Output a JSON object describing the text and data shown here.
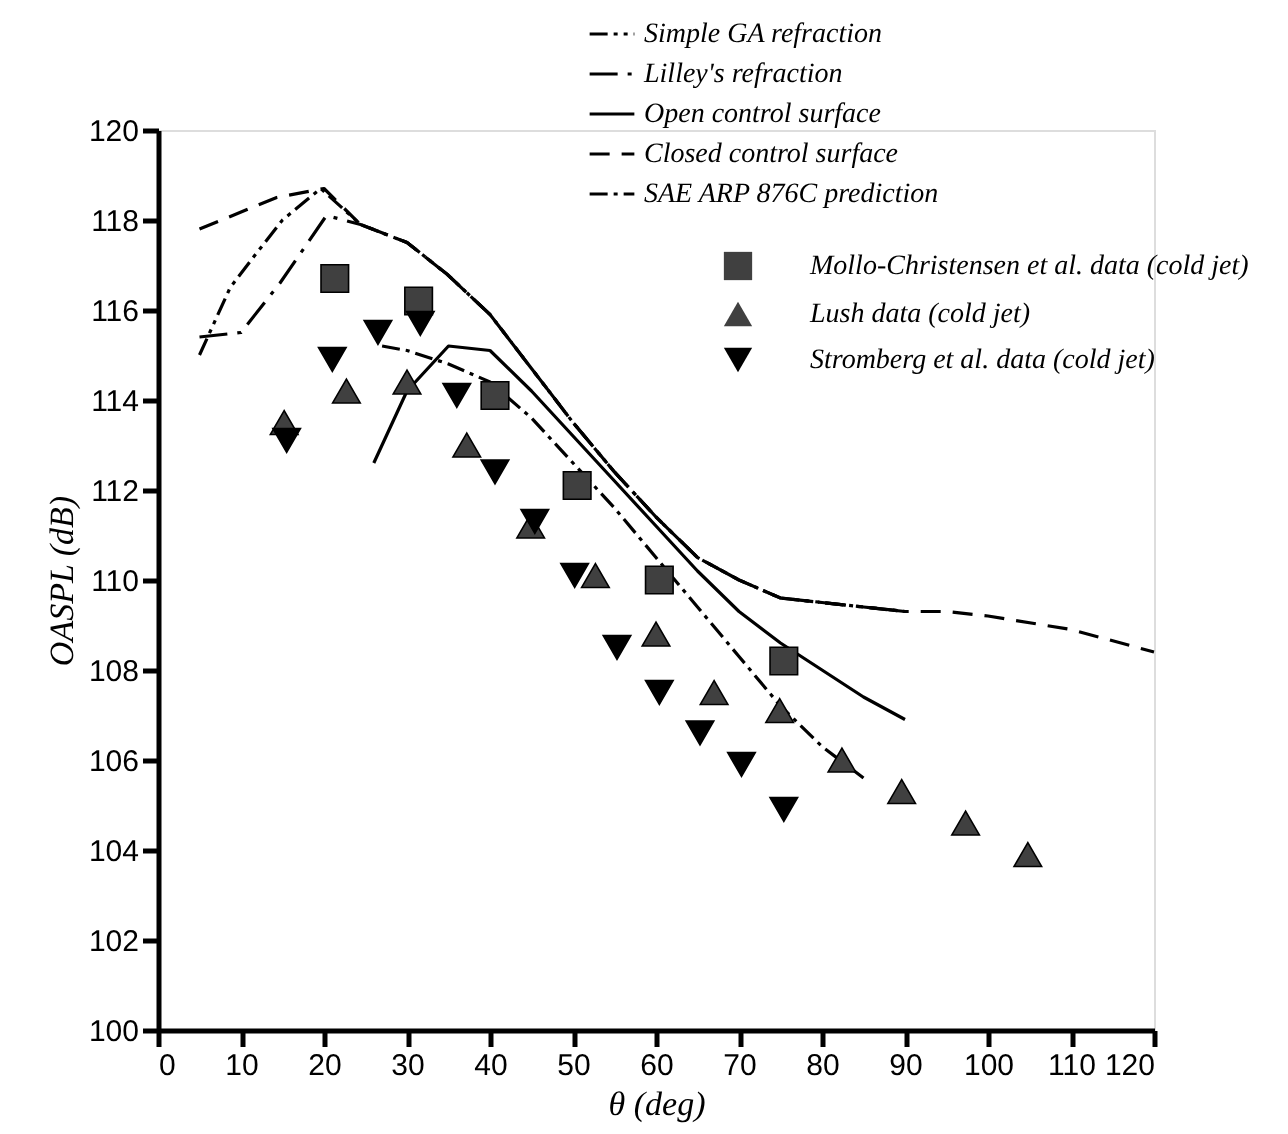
{
  "chart_data": {
    "type": "line",
    "xlabel": "θ  (deg)",
    "ylabel": "OASPL (dB)",
    "xlim": [
      0,
      120
    ],
    "xticks": [
      0,
      10,
      20,
      30,
      40,
      50,
      60,
      70,
      80,
      90,
      100,
      110,
      120
    ],
    "ylim": [
      100,
      120
    ],
    "yticks": [
      100,
      102,
      104,
      106,
      108,
      110,
      112,
      114,
      116,
      118,
      120
    ],
    "grid": false,
    "legend": "top right",
    "series": [
      {
        "name": "Simple GA refraction",
        "line_style": "dashdotdot",
        "color": "#000000",
        "x": [
          5,
          8.7,
          11.6,
          15,
          19.6,
          24.4,
          30,
          34.8,
          40,
          45,
          50,
          55,
          60,
          65,
          70,
          75,
          80,
          85,
          90
        ],
        "values": [
          115,
          116.5,
          117.2,
          118,
          118.7,
          117.9,
          117.5,
          116.8,
          115.9,
          114.7,
          113.5,
          112.4,
          111.4,
          110.5,
          110,
          109.6,
          109.5,
          109.4,
          109.3
        ]
      },
      {
        "name": "Lilley's refraction",
        "line_style": "longdashdot",
        "color": "#000000",
        "x": [
          5,
          10,
          14.7,
          20.3,
          24.4,
          30,
          34.8,
          40,
          45,
          50,
          55,
          60,
          65,
          70,
          75,
          80,
          85,
          90
        ],
        "values": [
          115.4,
          115.5,
          116.6,
          118.1,
          117.9,
          117.5,
          116.8,
          115.9,
          114.7,
          113.5,
          112.4,
          111.4,
          110.5,
          110,
          109.6,
          109.5,
          109.4,
          109.3
        ]
      },
      {
        "name": "Open control surface",
        "line_style": "solid",
        "color": "#000000",
        "x": [
          26,
          30,
          35,
          40,
          45,
          50,
          55,
          60,
          65,
          70,
          75,
          80,
          85,
          90
        ],
        "values": [
          112.6,
          114.2,
          115.2,
          115.1,
          114.2,
          113.2,
          112.2,
          111.2,
          110.2,
          109.3,
          108.6,
          108,
          107.4,
          106.9
        ]
      },
      {
        "name": "Closed control surface",
        "line_style": "dashed",
        "color": "#000000",
        "x": [
          5,
          14.3,
          20,
          24.4,
          30,
          34.8,
          40,
          45,
          50,
          55,
          60,
          65,
          70,
          75,
          80,
          85,
          90,
          95,
          100,
          110,
          120
        ],
        "values": [
          117.8,
          118.5,
          118.7,
          117.9,
          117.5,
          116.8,
          115.9,
          114.7,
          113.5,
          112.4,
          111.4,
          110.5,
          110,
          109.6,
          109.5,
          109.4,
          109.3,
          109.3,
          109.2,
          108.9,
          108.4
        ]
      },
      {
        "name": "SAE ARP 876C prediction",
        "line_style": "dashdot",
        "color": "#000000",
        "x": [
          27,
          30,
          35,
          40,
          45,
          50,
          55,
          60,
          65,
          70,
          75,
          80,
          85
        ],
        "values": [
          115.2,
          115.1,
          114.8,
          114.4,
          113.6,
          112.6,
          111.6,
          110.5,
          109.4,
          108.3,
          107.2,
          106.3,
          105.6
        ]
      },
      {
        "name": "Mollo-Christensen et al. data (cold jet)",
        "type": "scatter",
        "marker": "square",
        "color": "#404040",
        "x": [
          21.3,
          31.4,
          40.6,
          50.5,
          60.4,
          75.4
        ],
        "values": [
          116.7,
          116.2,
          114.1,
          112.1,
          110.0,
          108.2
        ]
      },
      {
        "name": "Lush data (cold jet)",
        "type": "scatter",
        "marker": "triangle",
        "color": "#404040",
        "x": [
          15.2,
          22.7,
          30,
          37.2,
          44.9,
          52.7,
          60,
          67,
          74.9,
          82.4,
          89.6,
          97.3,
          104.8
        ],
        "values": [
          113.5,
          114.2,
          114.4,
          113,
          111.2,
          110.1,
          108.8,
          107.5,
          107.1,
          106,
          105.3,
          104.6,
          103.9
        ]
      },
      {
        "name": "Stromberg et al. data (cold jet)",
        "type": "scatter",
        "marker": "triangle-down",
        "color": "#000000",
        "x": [
          15.5,
          21,
          26.5,
          31.6,
          36,
          40.6,
          45.4,
          50.2,
          55.3,
          60.4,
          65.3,
          70.3,
          75.4
        ],
        "values": [
          113.1,
          114.9,
          115.5,
          115.7,
          114.1,
          112.4,
          111.3,
          110.1,
          108.5,
          107.5,
          106.6,
          105.9,
          104.9
        ]
      }
    ]
  }
}
